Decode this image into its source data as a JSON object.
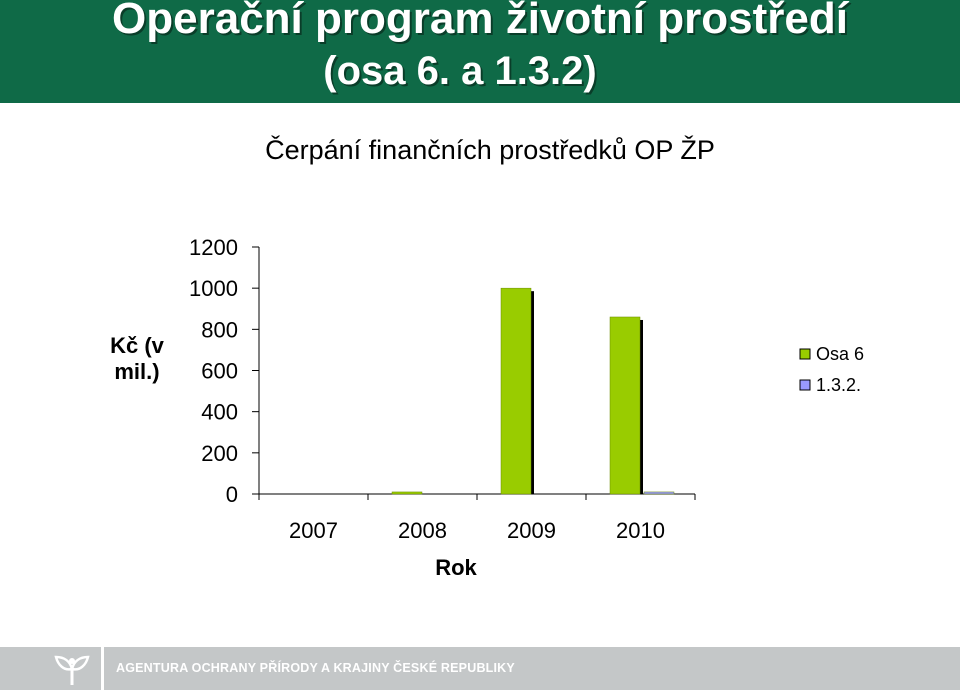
{
  "header": {
    "title": "Operační program životní prostředí",
    "subtitle": "(osa 6. a 1.3.2)"
  },
  "footer": {
    "text": "AGENTURA OCHRANY PŘÍRODY A KRAJINY ČESKÉ REPUBLIKY",
    "logo_icon": "leaf-logo-icon"
  },
  "colors": {
    "header_bg": "#0f6a47",
    "footer_bg": "#c4c7c8",
    "osa6": "#99cc00",
    "s132": "#9999ff"
  },
  "chart_data": {
    "type": "bar",
    "title": "Čerpání finančních prostředků OP ŽP",
    "xlabel": "Rok",
    "ylabel": "Kč (v mil.)",
    "categories": [
      "2007",
      "2008",
      "2009",
      "2010"
    ],
    "series": [
      {
        "name": "Osa 6",
        "values": [
          0,
          10,
          1000,
          860
        ]
      },
      {
        "name": "1.3.2.",
        "values": [
          0,
          0,
          0,
          10
        ]
      }
    ],
    "ylim": [
      0,
      1200
    ],
    "yticks": [
      "0",
      "200",
      "400",
      "600",
      "800",
      "1000",
      "1200"
    ],
    "grid": false,
    "legend": "right"
  }
}
